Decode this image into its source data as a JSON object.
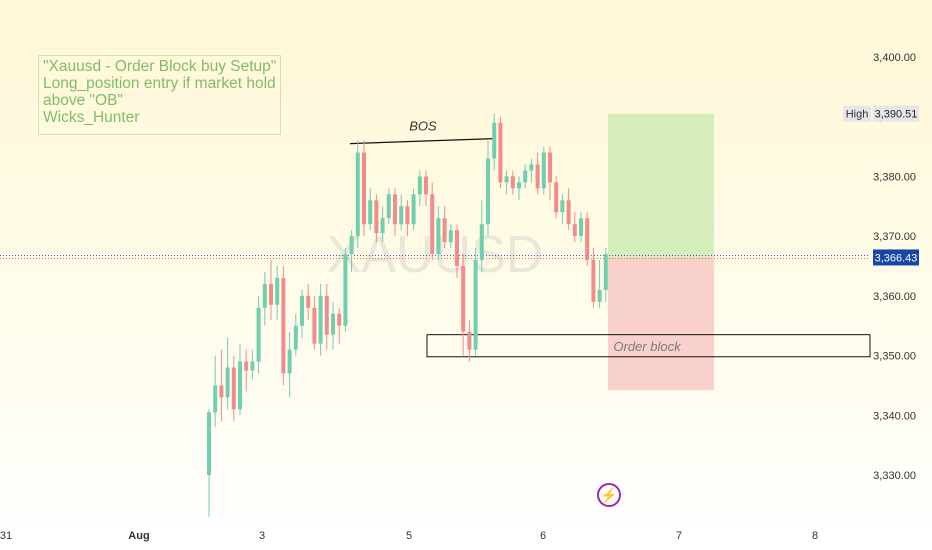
{
  "symbol": "XAUUSD",
  "annotation": {
    "lines": [
      "\"Xauusd - Order Block buy Setup\"",
      "Long_position entry if market hold",
      "above \"OB\"",
      "Wicks_Hunter"
    ]
  },
  "labels": {
    "bos": "BOS",
    "order_block": "Order block"
  },
  "price_tags": {
    "high_label": "High",
    "high_value": "3,390.51",
    "current_value": "3,366.43"
  },
  "colors": {
    "up": "#6fcfae",
    "down": "#f28c8c",
    "current_tag": "#1646a8",
    "reward_zone": "#cfeab4",
    "risk_zone": "#f7c9c6"
  },
  "icons": {
    "alert": "lightning-bolt-icon"
  },
  "chart_data": {
    "type": "candlestick",
    "ylim": [
      3323,
      3408
    ],
    "y_ticks": [
      "3,400.00",
      "3,390.00",
      "3,380.00",
      "3,370.00",
      "3,360.00",
      "3,350.00",
      "3,340.00",
      "3,330.00"
    ],
    "x_ticks": [
      "31",
      "Aug",
      "3",
      "5",
      "6",
      "7",
      "8"
    ],
    "current_price": 3366.43,
    "high_price": 3390.51,
    "bos_level": 3386,
    "order_block": [
      3349.8,
      3353.5
    ],
    "position": {
      "entry": 3366.43,
      "target": 3390.51,
      "stop": 3344.2
    },
    "candles": [
      [
        3330,
        3340.5,
        3323,
        3341
      ],
      [
        3340.5,
        3345,
        3338,
        3350
      ],
      [
        3345,
        3343,
        3339,
        3351
      ],
      [
        3343,
        3348,
        3341,
        3353
      ],
      [
        3348,
        3341,
        3339,
        3350
      ],
      [
        3341,
        3349,
        3340,
        3352
      ],
      [
        3349,
        3347.5,
        3344,
        3351
      ],
      [
        3347.5,
        3349,
        3346,
        3351
      ],
      [
        3349,
        3358,
        3347,
        3360
      ],
      [
        3358,
        3362,
        3355,
        3364
      ],
      [
        3362,
        3358.5,
        3356,
        3366
      ],
      [
        3358.5,
        3363,
        3356,
        3365
      ],
      [
        3363,
        3347,
        3345,
        3365
      ],
      [
        3347,
        3351,
        3343,
        3354
      ],
      [
        3351,
        3355,
        3350,
        3357
      ],
      [
        3355,
        3360,
        3353,
        3361
      ],
      [
        3360,
        3358,
        3356,
        3362
      ],
      [
        3358,
        3352,
        3351,
        3360
      ],
      [
        3352,
        3360,
        3350,
        3362
      ],
      [
        3360,
        3353.5,
        3351,
        3362
      ],
      [
        3353.5,
        3357,
        3351,
        3359
      ],
      [
        3357,
        3355,
        3352,
        3358
      ],
      [
        3355,
        3367,
        3354,
        3368
      ],
      [
        3367,
        3370,
        3364,
        3371
      ],
      [
        3370,
        3384,
        3368,
        3386
      ],
      [
        3384,
        3372,
        3370,
        3386
      ],
      [
        3372,
        3376,
        3371,
        3378
      ],
      [
        3376,
        3370.5,
        3369,
        3377
      ],
      [
        3370.5,
        3373,
        3369,
        3375
      ],
      [
        3373,
        3377,
        3372,
        3378
      ],
      [
        3377,
        3372,
        3370,
        3378
      ],
      [
        3372,
        3375,
        3371,
        3377
      ],
      [
        3375,
        3372,
        3370,
        3376
      ],
      [
        3372,
        3377,
        3371,
        3378
      ],
      [
        3377,
        3380,
        3375,
        3381
      ],
      [
        3380,
        3377,
        3375,
        3381
      ],
      [
        3377,
        3367,
        3366,
        3379
      ],
      [
        3367,
        3373,
        3366,
        3375
      ],
      [
        3373,
        3369,
        3368,
        3375
      ],
      [
        3369,
        3371,
        3368,
        3372
      ],
      [
        3371,
        3365,
        3363,
        3372
      ],
      [
        3365,
        3354,
        3350,
        3367
      ],
      [
        3354,
        3351,
        3349,
        3356
      ],
      [
        3351,
        3366,
        3350,
        3368
      ],
      [
        3366,
        3372,
        3364,
        3376
      ],
      [
        3372,
        3383,
        3370,
        3386
      ],
      [
        3383,
        3389,
        3381,
        3390.5
      ],
      [
        3389,
        3379,
        3378,
        3390
      ],
      [
        3379,
        3380,
        3377,
        3381
      ],
      [
        3380,
        3378,
        3377,
        3381
      ],
      [
        3378,
        3379,
        3376,
        3380
      ],
      [
        3379,
        3381,
        3378,
        3382
      ],
      [
        3381,
        3382,
        3379,
        3383
      ],
      [
        3382,
        3378,
        3377,
        3384
      ],
      [
        3378,
        3384,
        3377,
        3385
      ],
      [
        3384,
        3379,
        3376,
        3385
      ],
      [
        3379,
        3374,
        3373,
        3380
      ],
      [
        3374,
        3376,
        3372,
        3377
      ],
      [
        3376,
        3372,
        3371,
        3378
      ],
      [
        3372,
        3370,
        3369,
        3374
      ],
      [
        3370,
        3373,
        3369,
        3374
      ],
      [
        3373,
        3366,
        3365,
        3374
      ],
      [
        3366,
        3359,
        3358,
        3368
      ],
      [
        3359,
        3361,
        3358,
        3366
      ],
      [
        3361,
        3367,
        3359,
        3368
      ]
    ]
  }
}
